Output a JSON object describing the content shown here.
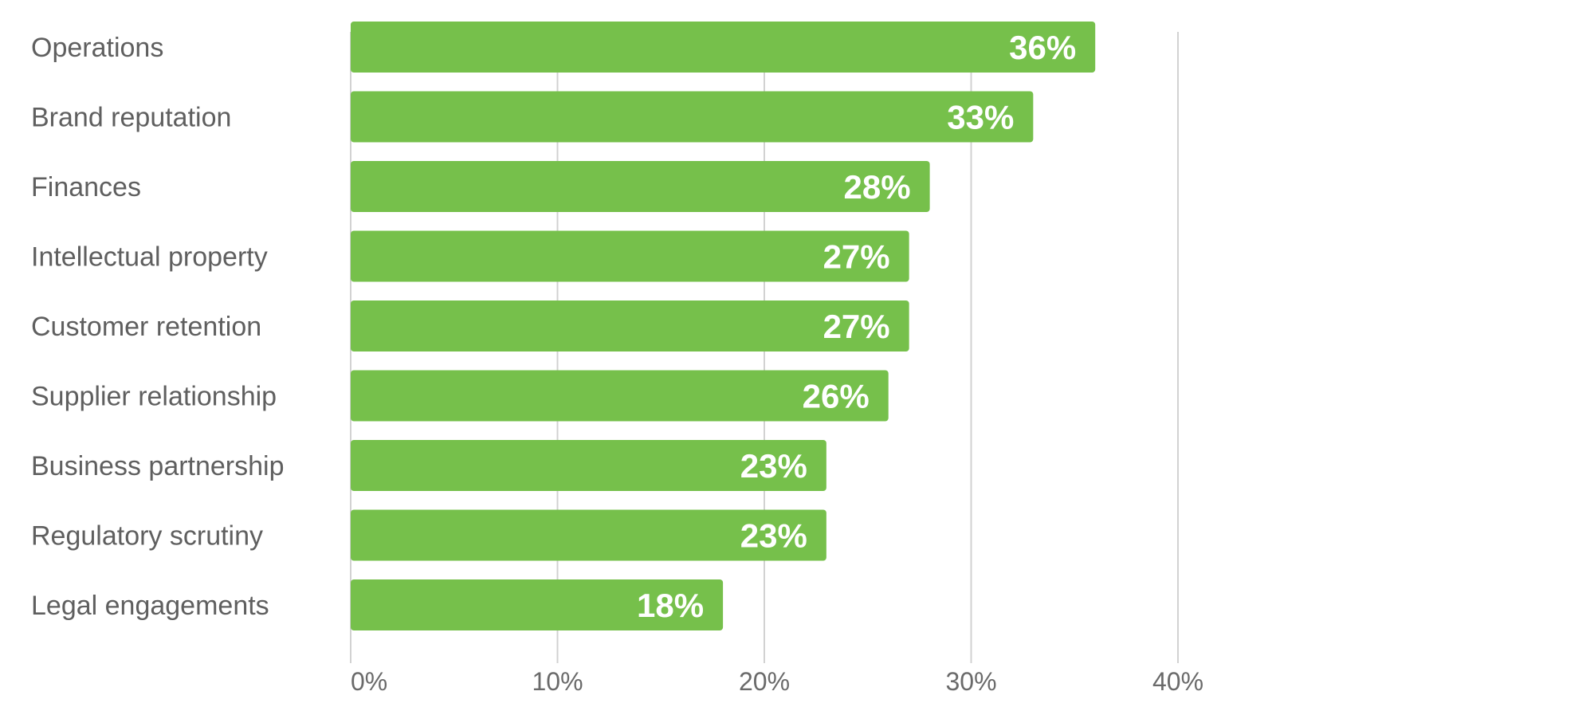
{
  "chart_data": {
    "type": "bar",
    "orientation": "horizontal",
    "categories": [
      "Operations",
      "Brand reputation",
      "Finances",
      "Intellectual property",
      "Customer retention",
      "Supplier relationship",
      "Business partnership",
      "Regulatory scrutiny",
      "Legal engagements"
    ],
    "values": [
      36,
      33,
      28,
      27,
      27,
      26,
      23,
      23,
      18
    ],
    "value_labels": [
      "36%",
      "33%",
      "28%",
      "27%",
      "27%",
      "26%",
      "23%",
      "23%",
      "18%"
    ],
    "xlim": [
      0,
      40
    ],
    "x_ticks": [
      0,
      10,
      20,
      30,
      40
    ],
    "x_tick_labels": [
      "0%",
      "10%",
      "20%",
      "30%",
      "40%"
    ],
    "title": "",
    "xlabel": "",
    "ylabel": "",
    "grid": "vertical",
    "legend": "none",
    "colors": {
      "bar": "#76c04b",
      "value_text": "#ffffff",
      "category_text": "#5f5f5f",
      "tick_text": "#6a6a6a",
      "grid": "#d2d2d2"
    }
  }
}
